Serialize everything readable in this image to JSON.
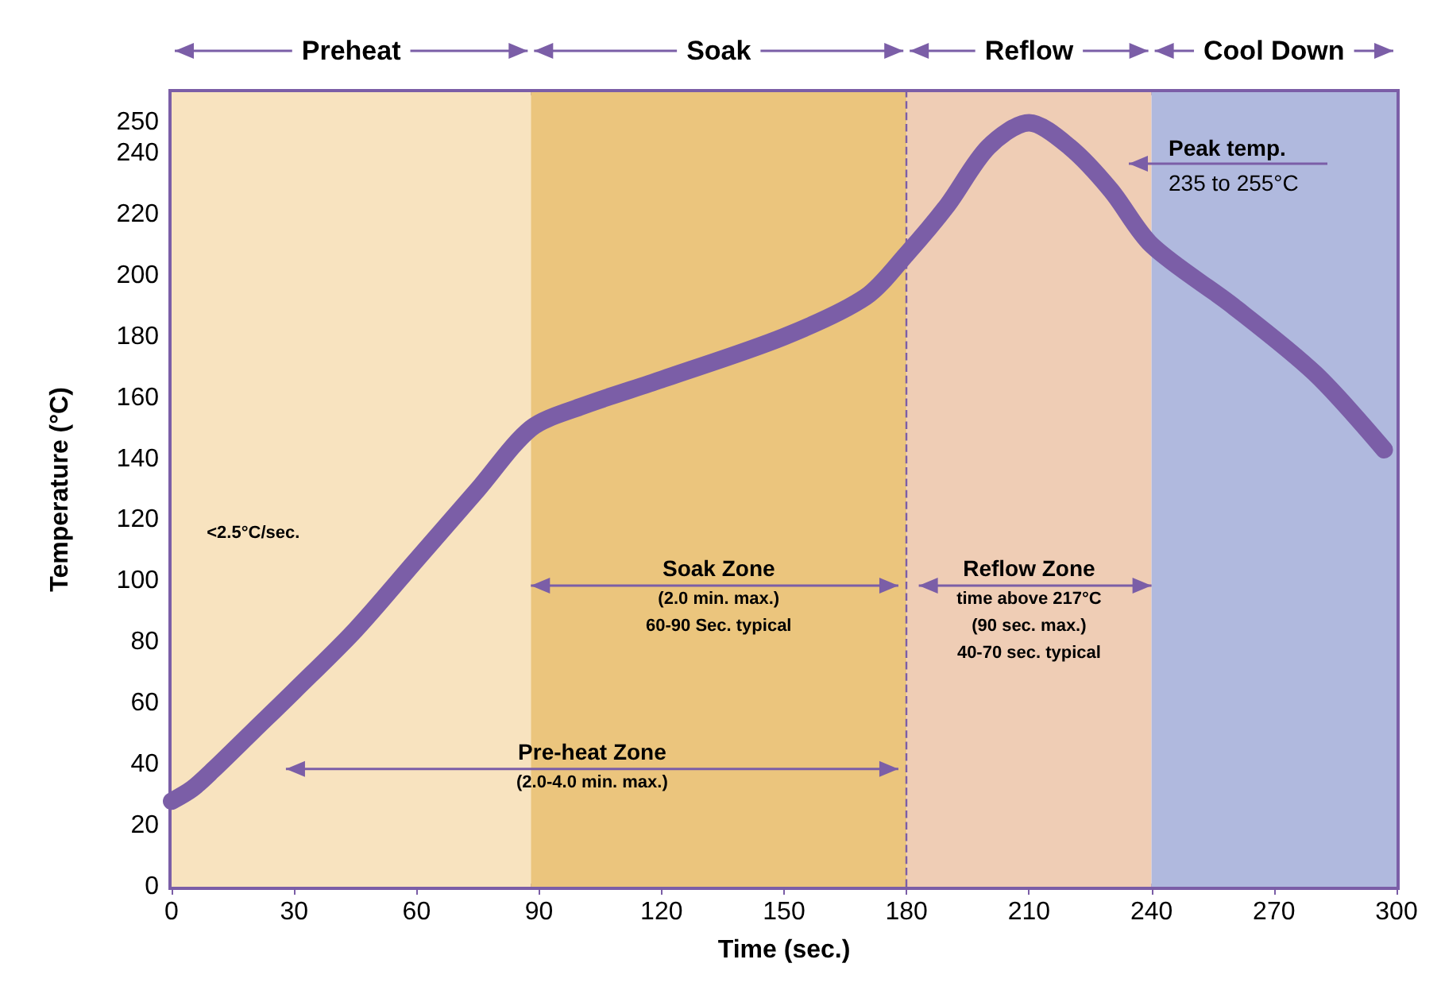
{
  "chart_data": {
    "type": "line",
    "xlabel": "Time (sec.)",
    "ylabel": "Temperature (°C)",
    "x": [
      0,
      5,
      10,
      20,
      30,
      45,
      60,
      75,
      88,
      100,
      120,
      150,
      170,
      180,
      190,
      200,
      210,
      220,
      230,
      240,
      260,
      280,
      297
    ],
    "series": [
      {
        "color": "#7b5ea7",
        "values": [
          28,
          32,
          38,
          51,
          64,
          84,
          107,
          130,
          150,
          157,
          166,
          180,
          193,
          207,
          223,
          242,
          250,
          242,
          228,
          210,
          190,
          168,
          143
        ]
      }
    ],
    "xlim": [
      0,
      300
    ],
    "xticks": [
      0,
      30,
      60,
      90,
      120,
      150,
      180,
      210,
      240,
      270,
      300
    ],
    "ylim": [
      0,
      260
    ],
    "yticks": [
      0,
      20,
      40,
      60,
      80,
      100,
      120,
      140,
      160,
      180,
      200,
      220,
      240,
      250
    ],
    "bands": [
      {
        "axis": "x",
        "from": 0,
        "to": 88,
        "label": "Preheat",
        "color": "#f8e3bf"
      },
      {
        "axis": "x",
        "from": 88,
        "to": 180,
        "label": "Soak",
        "color": "#ebc57d"
      },
      {
        "axis": "x",
        "from": 180,
        "to": 240,
        "label": "Reflow",
        "color": "#efcdb5"
      },
      {
        "axis": "x",
        "from": 240,
        "to": 300,
        "label": "Cool Down",
        "color": "#b0b9de"
      }
    ],
    "ref_lines": [
      {
        "axis": "x",
        "value": 180,
        "color": "#7b5ea7",
        "line_style": "dashed"
      }
    ],
    "annotations": [
      "<2.5°C/sec.",
      "Soak Zone\n(2.0 min. max.)\n60-90 Sec. typical",
      "Reflow Zone\ntime above 217°C\n(90 sec. max.)\n40-70 sec. typical",
      "Pre-heat Zone\n(2.0-4.0 min. max.)",
      "Peak temp.\n235 to 255°C"
    ],
    "line_style": "solid",
    "grid": false
  }
}
